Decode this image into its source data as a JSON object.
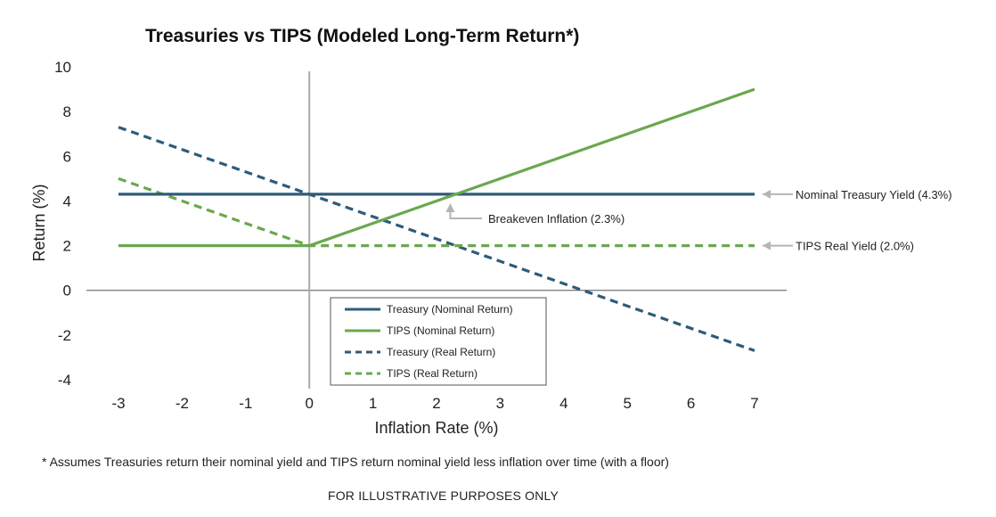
{
  "chart_data": {
    "type": "line",
    "title": "Treasuries vs TIPS (Modeled Long-Term Return*)",
    "xlabel": "Inflation Rate (%)",
    "ylabel": "Return (%)",
    "xlim": [
      -3,
      7
    ],
    "ylim": [
      -4,
      10
    ],
    "x_ticks": [
      "-3",
      "-2",
      "-1",
      "0",
      "1",
      "2",
      "3",
      "4",
      "5",
      "6",
      "7"
    ],
    "y_ticks": [
      "-4",
      "-2",
      "0",
      "2",
      "4",
      "6",
      "8",
      "10"
    ],
    "grid": false,
    "legend_position": "bottom-center",
    "series": [
      {
        "name": "Treasury (Nominal Return)",
        "color": "#2e5b7a",
        "style": "solid",
        "points": [
          [
            -3,
            4.3
          ],
          [
            7,
            4.3
          ]
        ]
      },
      {
        "name": "TIPS (Nominal Return)",
        "color": "#6aa84f",
        "style": "solid",
        "points": [
          [
            -3,
            2.0
          ],
          [
            0,
            2.0
          ],
          [
            7,
            9.0
          ]
        ]
      },
      {
        "name": "Treasury (Real Return)",
        "color": "#2e5b7a",
        "style": "dashed",
        "points": [
          [
            -3,
            7.3
          ],
          [
            7,
            -2.7
          ]
        ]
      },
      {
        "name": "TIPS (Real Return)",
        "color": "#6aa84f",
        "style": "dashed",
        "points": [
          [
            -3,
            5.0
          ],
          [
            0,
            2.0
          ],
          [
            7,
            2.0
          ]
        ]
      }
    ],
    "annotations": {
      "nominal_yield": {
        "text": "Nominal Treasury Yield (4.3%)",
        "x": 7,
        "y": 4.3
      },
      "real_yield": {
        "text": "TIPS Real Yield (2.0%)",
        "x": 7,
        "y": 2.0
      },
      "breakeven": {
        "text": "Breakeven Inflation (2.3%)",
        "x": 2.3,
        "y": 4.3
      }
    }
  },
  "footnote": "* Assumes Treasuries return their nominal yield and TIPS return nominal yield less inflation over time (with a floor)",
  "disclaimer": "FOR ILLUSTRATIVE PURPOSES ONLY"
}
